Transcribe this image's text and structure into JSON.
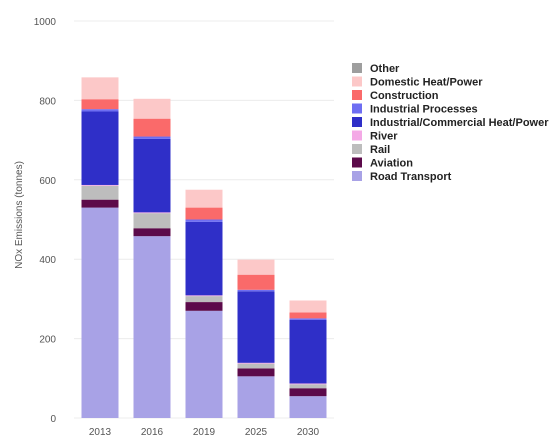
{
  "chart_data": {
    "type": "bar",
    "stacked": true,
    "ylabel": "NOx Emissions (tonnes)",
    "ylim": [
      0,
      1000
    ],
    "yticks": [
      0,
      200,
      400,
      600,
      800,
      1000
    ],
    "grid": true,
    "legend_position": "right",
    "categories": [
      "2013",
      "2016",
      "2019",
      "2025",
      "2030"
    ],
    "series": [
      {
        "name": "Road Transport",
        "color": "#a8a2e6",
        "values": [
          530,
          458,
          270,
          105,
          55
        ]
      },
      {
        "name": "Aviation",
        "color": "#5c0a4a",
        "values": [
          20,
          20,
          22,
          20,
          20
        ]
      },
      {
        "name": "Rail",
        "color": "#bdbdbd",
        "values": [
          35,
          38,
          15,
          12,
          10
        ]
      },
      {
        "name": "River",
        "color": "#f4a9e6",
        "values": [
          2,
          2,
          2,
          2,
          2
        ]
      },
      {
        "name": "Industrial/Commercial Heat/Power",
        "color": "#2f2fc8",
        "values": [
          185,
          185,
          185,
          180,
          160
        ]
      },
      {
        "name": "Industrial Processes",
        "color": "#6e6ef2",
        "values": [
          6,
          6,
          6,
          4,
          4
        ]
      },
      {
        "name": "Construction",
        "color": "#fa6a6a",
        "values": [
          25,
          45,
          30,
          38,
          15
        ]
      },
      {
        "name": "Domestic Heat/Power",
        "color": "#fcc8c8",
        "values": [
          55,
          50,
          45,
          38,
          30
        ]
      },
      {
        "name": "Other",
        "color": "#9e9e9e",
        "values": [
          0,
          0,
          0,
          0,
          0
        ]
      }
    ]
  }
}
